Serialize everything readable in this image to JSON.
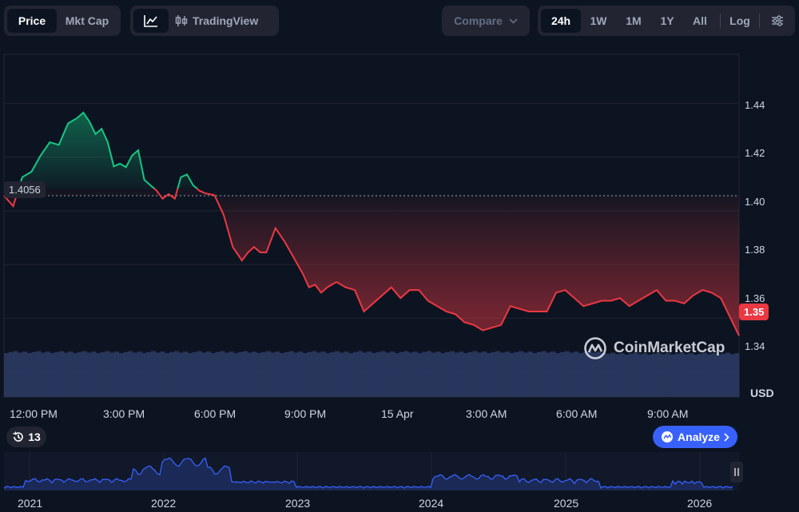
{
  "toolbar": {
    "view_tabs": [
      {
        "label": "Price",
        "active": true
      },
      {
        "label": "Mkt Cap",
        "active": false
      }
    ],
    "chart_style": {
      "line_icon": "line-chart-icon",
      "tradingview_icon": "candlestick-icon",
      "tradingview_label": "TradingView"
    },
    "compare_label": "Compare",
    "ranges": [
      {
        "label": "24h",
        "active": true
      },
      {
        "label": "1W"
      },
      {
        "label": "1M"
      },
      {
        "label": "1Y"
      },
      {
        "label": "All"
      }
    ],
    "log_label": "Log",
    "settings_icon": "sliders-icon"
  },
  "chart_data": {
    "type": "line",
    "open_price": 1.4056,
    "open_price_label": "1.4056",
    "last_price_label": "1.35",
    "y_ticks": [
      "1.44",
      "1.42",
      "1.40",
      "1.38",
      "1.36",
      "1.34"
    ],
    "ylim": [
      1.3307,
      1.4582
    ],
    "currency": "USD",
    "x_ticks": [
      "12:00 PM",
      "3:00 PM",
      "6:00 PM",
      "9:00 PM",
      "15 Apr",
      "3:00 AM",
      "6:00 AM",
      "9:00 AM"
    ],
    "x_range_hours": [
      -0.6,
      23.5
    ],
    "series": [
      {
        "x": [
          -0.6,
          -0.3,
          0,
          0.3,
          0.6,
          0.9,
          1.2,
          1.5,
          1.8,
          2.0,
          2.2,
          2.4,
          2.6,
          2.8,
          3.0,
          3.2,
          3.4,
          3.6,
          3.8,
          4.0,
          4.2,
          4.4,
          4.6,
          4.8,
          5.0,
          5.2,
          5.4,
          5.6,
          5.8,
          6.0,
          6.3,
          6.6,
          6.9,
          7.2,
          7.4,
          7.6,
          7.8,
          8.0,
          8.3,
          8.6,
          8.9,
          9.2,
          9.4,
          9.6,
          9.8,
          10.0,
          10.3,
          10.6,
          10.9,
          11.2,
          11.5,
          11.8,
          12.1,
          12.4,
          12.7,
          13.0,
          13.3,
          13.6,
          13.9,
          14.2,
          14.5,
          14.8,
          15.1,
          15.4,
          15.7,
          16.0,
          16.3,
          16.6,
          16.9,
          17.2,
          17.5,
          17.8,
          18.1,
          18.4,
          18.7,
          19.0,
          19.3,
          19.6,
          19.9,
          20.2,
          20.5,
          20.8,
          21.1,
          21.4,
          21.7,
          22.0,
          22.3,
          22.6,
          22.9,
          23.2,
          23.5
        ],
        "y": [
          1.4056,
          1.4017,
          1.4125,
          1.4145,
          1.4205,
          1.4255,
          1.4245,
          1.4325,
          1.4345,
          1.4365,
          1.4332,
          1.4285,
          1.4305,
          1.4255,
          1.4165,
          1.4175,
          1.4162,
          1.4205,
          1.4225,
          1.4115,
          1.4095,
          1.4075,
          1.4045,
          1.4062,
          1.4045,
          1.4125,
          1.4135,
          1.4095,
          1.4075,
          1.4065,
          1.4058,
          1.3985,
          1.3865,
          1.3815,
          1.3845,
          1.3865,
          1.3845,
          1.3845,
          1.3935,
          1.3885,
          1.3825,
          1.3765,
          1.3715,
          1.3725,
          1.3695,
          1.3715,
          1.3735,
          1.3715,
          1.3705,
          1.3625,
          1.3655,
          1.3685,
          1.3715,
          1.3675,
          1.3705,
          1.3705,
          1.3665,
          1.3645,
          1.3625,
          1.3615,
          1.3585,
          1.3575,
          1.3555,
          1.3565,
          1.3575,
          1.3645,
          1.3635,
          1.3625,
          1.3625,
          1.3625,
          1.3695,
          1.3705,
          1.3675,
          1.3645,
          1.3655,
          1.3665,
          1.3665,
          1.3675,
          1.3645,
          1.3665,
          1.3685,
          1.3705,
          1.3665,
          1.3665,
          1.3655,
          1.3685,
          1.3705,
          1.3695,
          1.3675,
          1.3605,
          1.3535
        ],
        "up_color": "#16c784",
        "down_color": "#ea3943"
      }
    ],
    "volume": {
      "color": "#2b3a63"
    },
    "navigator": {
      "x_ticks": [
        "2021",
        "2022",
        "2023",
        "2024",
        "2025",
        "2026"
      ],
      "line_color": "#3861fb"
    }
  },
  "events": {
    "icon": "history-icon",
    "count": "13"
  },
  "analyze": {
    "icon": "analyze-icon",
    "label": "Analyze",
    "chevron": "chevron-right-icon"
  },
  "watermark": {
    "logo": "coinmarketcap-logo-icon",
    "text": "CoinMarketCap"
  }
}
